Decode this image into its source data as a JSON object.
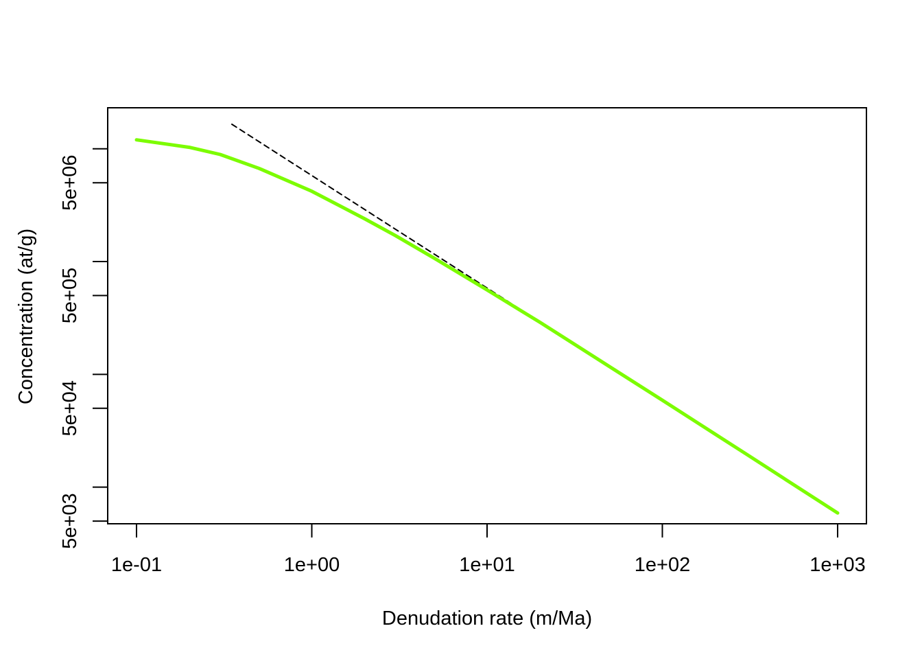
{
  "chart_data": {
    "type": "line",
    "title": "",
    "xlabel": "Denudation rate (m/Ma)",
    "ylabel": "Concentration (at/g)",
    "x_scale": "log",
    "y_scale": "log",
    "xlim": [
      0.1,
      1000
    ],
    "ylim": [
      4800,
      16500000
    ],
    "grid": false,
    "legend": "none",
    "x_ticks": [
      0.1,
      1,
      10,
      100,
      1000
    ],
    "x_tick_labels": [
      "1e-01",
      "1e+00",
      "1e+01",
      "1e+02",
      "1e+03"
    ],
    "y_ticks": [
      5000,
      10000,
      50000,
      100000,
      500000,
      1000000,
      5000000,
      10000000
    ],
    "y_tick_labels": [
      "5e+03",
      "",
      "5e+04",
      "",
      "5e+05",
      "",
      "5e+06",
      ""
    ],
    "series": [
      {
        "style": "solid",
        "color": "#7CFC00",
        "x": [
          0.1,
          0.2,
          0.3,
          0.5,
          1,
          2,
          3,
          5,
          10,
          20,
          30,
          50,
          100,
          200,
          300,
          500,
          1000
        ],
        "y": [
          12000000,
          10300000,
          8900000,
          6700000,
          4200000,
          2400000,
          1700000,
          1070000,
          560000,
          290000,
          194000,
          117000,
          59000,
          29500,
          19700,
          11800,
          5900
        ]
      },
      {
        "style": "dashed",
        "color": "#000000",
        "x": [
          0.35,
          1000
        ],
        "y": [
          16500000,
          5900
        ]
      }
    ]
  }
}
